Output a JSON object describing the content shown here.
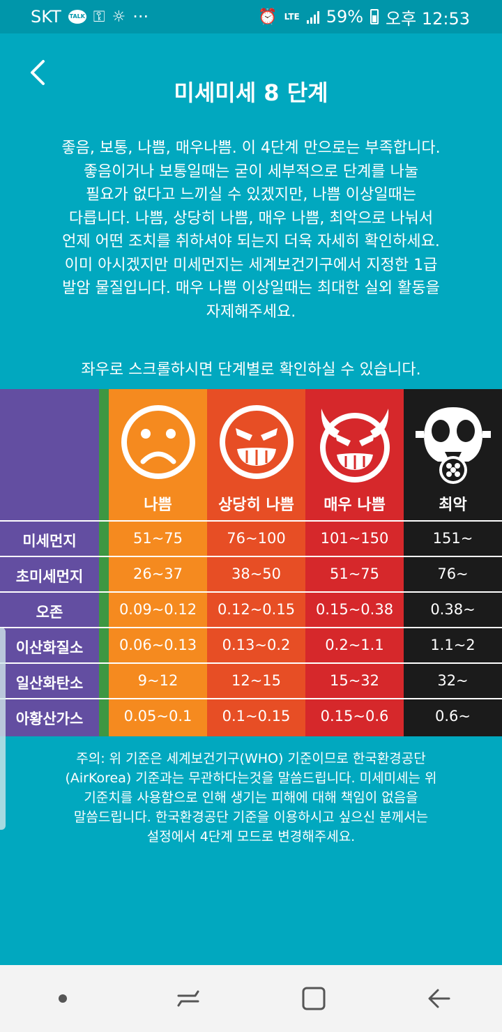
{
  "status_bar": {
    "carrier": "SKT",
    "talk_label": "TALK",
    "dots": "···",
    "network": "LTE",
    "battery": "59%",
    "time": "오후 12:53"
  },
  "header": {
    "title": "미세미세 8 단계"
  },
  "intro_lines": [
    "좋음, 보통, 나쁨, 매우나쁨. 이 4단계 만으로는 부족합니다.",
    "좋음이거나 보통일때는 굳이 세부적으로 단계를 나눌",
    "필요가 없다고 느끼실 수 있겠지만, 나쁨 이상일때는",
    "다릅니다. 나쁨, 상당히 나쁨, 매우 나쁨, 최악으로 나눠서",
    "언제 어떤 조치를 취하셔야 되는지 더욱 자세히 확인하세요.",
    "이미 아시겠지만 미세먼지는 세계보건기구에서 지정한 1급",
    "발암 물질입니다. 매우 나쁨 이상일때는 최대한 실외 활동을",
    "자제해주세요."
  ],
  "scroll_hint": "좌우로 스크롤하시면 단계별로 확인하실 수 있습니다.",
  "table": {
    "grades": [
      {
        "name": "나쁨",
        "color": "#f58a1f"
      },
      {
        "name": "상당히 나쁨",
        "color": "#e74e25"
      },
      {
        "name": "매우 나쁨",
        "color": "#d6282b"
      },
      {
        "name": "최악",
        "color": "#1b1b1b"
      }
    ],
    "rows": [
      {
        "label": "미세먼지",
        "values": [
          "51~75",
          "76~100",
          "101~150",
          "151~"
        ]
      },
      {
        "label": "초미세먼지",
        "values": [
          "26~37",
          "38~50",
          "51~75",
          "76~"
        ]
      },
      {
        "label": "오존",
        "values": [
          "0.09~0.12",
          "0.12~0.15",
          "0.15~0.38",
          "0.38~"
        ]
      },
      {
        "label": "이산화질소",
        "values": [
          "0.06~0.13",
          "0.13~0.2",
          "0.2~1.1",
          "1.1~2"
        ]
      },
      {
        "label": "일산화탄소",
        "values": [
          "9~12",
          "12~15",
          "15~32",
          "32~"
        ]
      },
      {
        "label": "아황산가스",
        "values": [
          "0.05~0.1",
          "0.1~0.15",
          "0.15~0.6",
          "0.6~"
        ]
      }
    ]
  },
  "note_lines": [
    "주의: 위 기준은 세계보건기구(WHO) 기준이므로 한국환경공단",
    "(AirKorea) 기준과는 무관하다는것을 말씀드립니다. 미세미세는 위",
    "기준치를 사용함으로 인해 생기는 피해에 대해 책임이 없음을",
    "말씀드립니다. 한국환경공단 기준을 이용하시고 싶으신 분께서는",
    "설정에서 4단계 모드로 변경해주세요."
  ],
  "icons": {
    "back": "chevron-left-icon",
    "nav_dot": "dot-icon",
    "nav_recent": "recent-apps-icon",
    "nav_home": "home-icon",
    "nav_back": "back-arrow-icon"
  }
}
